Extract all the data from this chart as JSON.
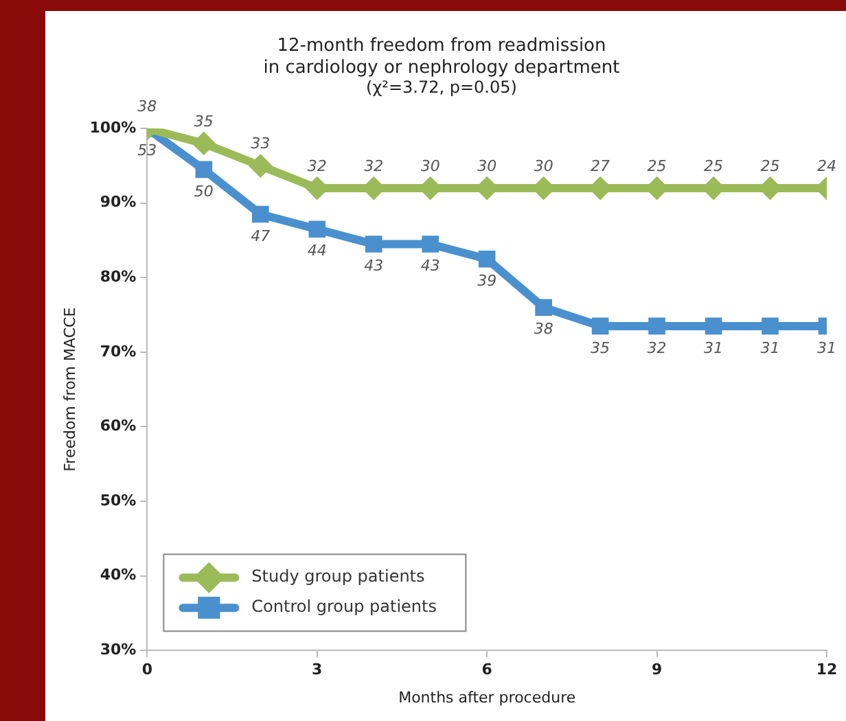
{
  "chart_data": {
    "type": "line",
    "title": "12-month freedom from readmission\nin cardiology or nephrology department",
    "subtitle": "(χ²=3.72, p=0.05)",
    "xlabel": "Months after procedure",
    "ylabel": "Freedom from MACCE",
    "x": [
      0,
      1,
      2,
      3,
      4,
      5,
      6,
      7,
      8,
      9,
      10,
      11,
      12
    ],
    "series": [
      {
        "name": "Study group patients",
        "color": "#9bbb59",
        "marker": "diamond",
        "values": [
          100,
          98,
          95,
          92,
          92,
          92,
          92,
          92,
          92,
          92,
          92,
          92,
          92
        ]
      },
      {
        "name": "Control group patients",
        "color": "#4a90cf",
        "marker": "square",
        "values": [
          100,
          94.5,
          88.5,
          86.5,
          84.5,
          84.5,
          82.5,
          76,
          73.5,
          73.5,
          73.5,
          73.5,
          73.5
        ]
      }
    ],
    "annotations": [
      {
        "text": "38",
        "x": 0,
        "y": 100
      },
      {
        "text": "35",
        "x": 1,
        "y": 98
      },
      {
        "text": "33",
        "x": 2,
        "y": 95
      },
      {
        "text": "32",
        "x": 3,
        "y": 92
      },
      {
        "text": "32",
        "x": 4,
        "y": 92
      },
      {
        "text": "30",
        "x": 5,
        "y": 92
      },
      {
        "text": "30",
        "x": 6,
        "y": 92
      },
      {
        "text": "30",
        "x": 7,
        "y": 92
      },
      {
        "text": "27",
        "x": 8,
        "y": 92
      },
      {
        "text": "25",
        "x": 9,
        "y": 92
      },
      {
        "text": "25",
        "x": 10,
        "y": 92
      },
      {
        "text": "25",
        "x": 11,
        "y": 92
      },
      {
        "text": "24",
        "x": 12,
        "y": 92
      },
      {
        "text": "53",
        "x": 0,
        "y": 100
      },
      {
        "text": "50",
        "x": 1,
        "y": 94.5
      },
      {
        "text": "47",
        "x": 2,
        "y": 88.5
      },
      {
        "text": "44",
        "x": 3,
        "y": 86.5
      },
      {
        "text": "43",
        "x": 4,
        "y": 84.5
      },
      {
        "text": "43",
        "x": 5,
        "y": 84.5
      },
      {
        "text": "39",
        "x": 6,
        "y": 82.5
      },
      {
        "text": "38",
        "x": 7,
        "y": 76
      },
      {
        "text": "35",
        "x": 8,
        "y": 73.5
      },
      {
        "text": "32",
        "x": 9,
        "y": 73.5
      },
      {
        "text": "31",
        "x": 10,
        "y": 73.5
      },
      {
        "text": "31",
        "x": 11,
        "y": 73.5
      },
      {
        "text": "31",
        "x": 12,
        "y": 73.5
      }
    ],
    "xlim": [
      0,
      12
    ],
    "xticks": [
      0,
      3,
      6,
      9,
      12
    ],
    "ylim": [
      30,
      100
    ],
    "yticks": [
      {
        "value": 30,
        "label": "30%"
      },
      {
        "value": 40,
        "label": "40%"
      },
      {
        "value": 50,
        "label": "50%"
      },
      {
        "value": 60,
        "label": "60%"
      },
      {
        "value": 70,
        "label": "70%"
      },
      {
        "value": 80,
        "label": "80%"
      },
      {
        "value": 90,
        "label": "90%"
      },
      {
        "value": 100,
        "label": "100%"
      }
    ],
    "grid": false,
    "legend": "bottom left",
    "line_style": "solid"
  }
}
